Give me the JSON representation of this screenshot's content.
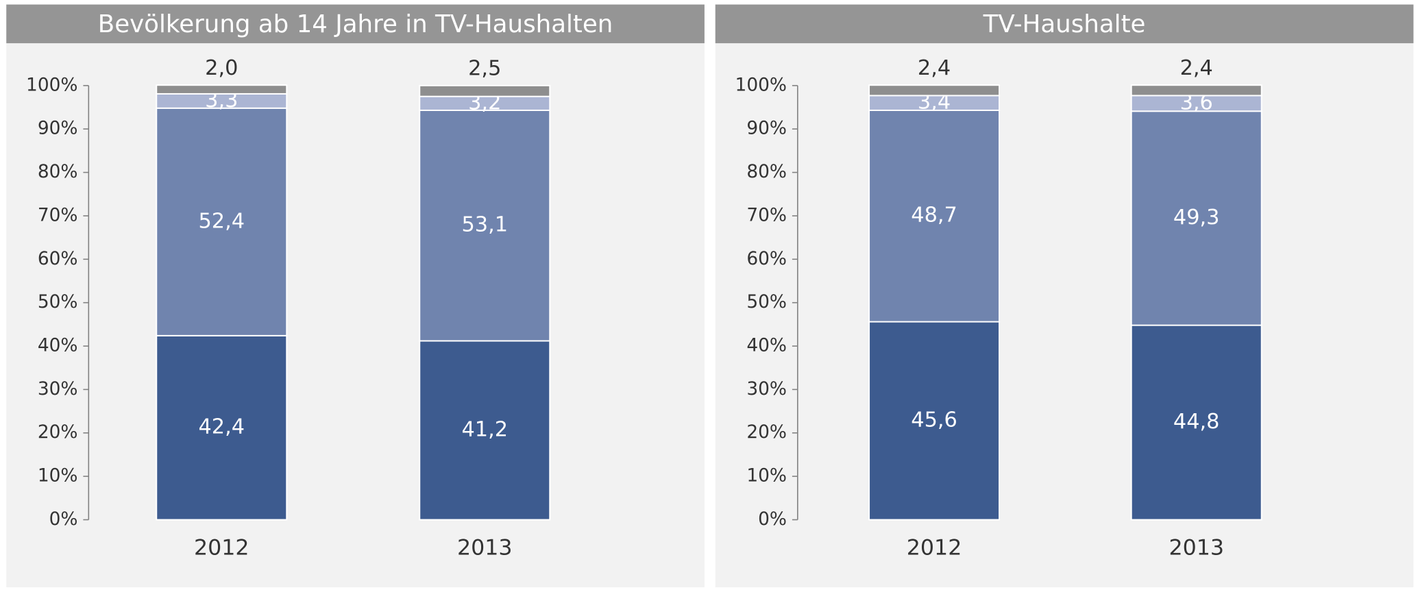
{
  "chart_data": [
    {
      "type": "bar",
      "stacked": true,
      "title": "Bevölkerung ab 14 Jahre in TV-Haushalten",
      "categories": [
        "2012",
        "2013"
      ],
      "series": [
        {
          "color": "#3d5b8f",
          "values": [
            42.4,
            41.2
          ],
          "value_labels": [
            "42,4",
            "41,2"
          ]
        },
        {
          "color": "#7084ae",
          "values": [
            52.4,
            53.1
          ],
          "value_labels": [
            "52,4",
            "53,1"
          ]
        },
        {
          "color": "#abb5d3",
          "values": [
            3.3,
            3.2
          ],
          "value_labels": [
            "3,3",
            "3,2"
          ]
        },
        {
          "color": "#8e8e8e",
          "values": [
            2.0,
            2.5
          ],
          "value_labels": [
            "2,0",
            "2,5"
          ]
        }
      ],
      "ylim": [
        0,
        100
      ],
      "yticks": [
        {
          "value": 0,
          "label": "0%"
        },
        {
          "value": 10,
          "label": "10%"
        },
        {
          "value": 20,
          "label": "20%"
        },
        {
          "value": 30,
          "label": "30%"
        },
        {
          "value": 40,
          "label": "40%"
        },
        {
          "value": 50,
          "label": "50%"
        },
        {
          "value": 60,
          "label": "60%"
        },
        {
          "value": 70,
          "label": "70%"
        },
        {
          "value": 80,
          "label": "80%"
        },
        {
          "value": 90,
          "label": "90%"
        },
        {
          "value": 100,
          "label": "100%"
        }
      ]
    },
    {
      "type": "bar",
      "stacked": true,
      "title": "TV-Haushalte",
      "categories": [
        "2012",
        "2013"
      ],
      "series": [
        {
          "color": "#3d5b8f",
          "values": [
            45.6,
            44.8
          ],
          "value_labels": [
            "45,6",
            "44,8"
          ]
        },
        {
          "color": "#7084ae",
          "values": [
            48.7,
            49.3
          ],
          "value_labels": [
            "48,7",
            "49,3"
          ]
        },
        {
          "color": "#abb5d3",
          "values": [
            3.4,
            3.6
          ],
          "value_labels": [
            "3,4",
            "3,6"
          ]
        },
        {
          "color": "#8e8e8e",
          "values": [
            2.4,
            2.4
          ],
          "value_labels": [
            "2,4",
            "2,4"
          ]
        }
      ],
      "ylim": [
        0,
        100
      ],
      "yticks": [
        {
          "value": 0,
          "label": "0%"
        },
        {
          "value": 10,
          "label": "10%"
        },
        {
          "value": 20,
          "label": "20%"
        },
        {
          "value": 30,
          "label": "30%"
        },
        {
          "value": 40,
          "label": "40%"
        },
        {
          "value": 50,
          "label": "50%"
        },
        {
          "value": 60,
          "label": "60%"
        },
        {
          "value": 70,
          "label": "70%"
        },
        {
          "value": 80,
          "label": "80%"
        },
        {
          "value": 90,
          "label": "90%"
        },
        {
          "value": 100,
          "label": "100%"
        }
      ]
    }
  ]
}
